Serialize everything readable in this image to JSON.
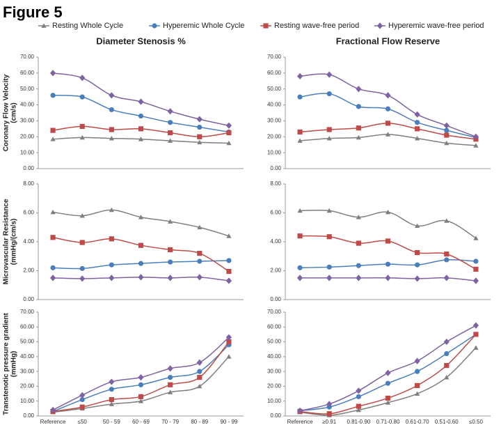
{
  "title": "Figure 5",
  "chart_data": [
    {
      "type": "line",
      "title": "Diameter Stenosis %",
      "ylabel": [
        "Coronary Flow Velocity",
        "(cm/s)"
      ],
      "categories": [
        null,
        null,
        null,
        null,
        null,
        null,
        null
      ],
      "ylim": [
        0,
        70
      ],
      "yticks": [
        {
          "value": 0,
          "label": "0.00"
        },
        {
          "value": 10,
          "label": "10.00"
        },
        {
          "value": 20,
          "label": "20.00"
        },
        {
          "value": 30,
          "label": "30.00"
        },
        {
          "value": 40,
          "label": "40.00"
        },
        {
          "value": 50,
          "label": "50.00"
        },
        {
          "value": 60,
          "label": "60.00"
        },
        {
          "value": 70,
          "label": "70.00"
        }
      ],
      "grid": false,
      "series": [
        {
          "name": "Resting Whole Cycle",
          "color": "#7f7f7f",
          "marker": "triangle",
          "values": [
            18.5,
            19.5,
            19,
            18.5,
            17.5,
            16.5,
            16
          ]
        },
        {
          "name": "Hyperemic Whole Cycle",
          "color": "#4a7ebb",
          "marker": "circle",
          "values": [
            46,
            45,
            37,
            33,
            29,
            26,
            23
          ]
        },
        {
          "name": "Resting wave-free period",
          "color": "#be4b48",
          "marker": "square",
          "values": [
            24,
            26.5,
            24.5,
            25,
            22.5,
            20,
            22.5
          ]
        },
        {
          "name": "Hyperemic wave-free period",
          "color": "#7e62a1",
          "marker": "diamond",
          "values": [
            60,
            57,
            46,
            42,
            36,
            31,
            27
          ]
        }
      ]
    },
    {
      "type": "line",
      "title": "Fractional Flow Reserve",
      "categories": [
        null,
        null,
        null,
        null,
        null,
        null,
        null
      ],
      "ylim": [
        0,
        70
      ],
      "yticks": [
        {
          "value": 0,
          "label": "0.00"
        },
        {
          "value": 10,
          "label": "10.00"
        },
        {
          "value": 20,
          "label": "20.00"
        },
        {
          "value": 30,
          "label": "30.00"
        },
        {
          "value": 40,
          "label": "40.00"
        },
        {
          "value": 50,
          "label": "50.00"
        },
        {
          "value": 60,
          "label": "60.00"
        },
        {
          "value": 70,
          "label": "70.00"
        }
      ],
      "grid": false,
      "series": [
        {
          "color": "#7f7f7f",
          "marker": "triangle",
          "values": [
            17.5,
            19,
            19.5,
            21.5,
            19,
            16,
            14.5
          ]
        },
        {
          "color": "#4a7ebb",
          "marker": "circle",
          "values": [
            45,
            47,
            39,
            37.5,
            29,
            24,
            19.5
          ]
        },
        {
          "color": "#be4b48",
          "marker": "square",
          "values": [
            23,
            24.5,
            25.5,
            28.5,
            25,
            21,
            18.5
          ]
        },
        {
          "color": "#7e62a1",
          "marker": "diamond",
          "values": [
            58,
            59,
            50,
            46,
            34,
            27,
            20
          ]
        }
      ]
    },
    {
      "type": "line",
      "ylabel": [
        "Microvascular Resistance",
        "(mmHg/(cm/s)"
      ],
      "categories": [
        null,
        null,
        null,
        null,
        null,
        null,
        null
      ],
      "ylim": [
        0,
        8
      ],
      "yticks": [
        {
          "value": 0,
          "label": "0.00"
        },
        {
          "value": 2,
          "label": "2.00"
        },
        {
          "value": 4,
          "label": "4.00"
        },
        {
          "value": 6,
          "label": "6.00"
        },
        {
          "value": 8,
          "label": "8.00"
        }
      ],
      "grid": false,
      "series": [
        {
          "color": "#7f7f7f",
          "marker": "triangle",
          "values": [
            6.05,
            5.8,
            6.2,
            5.7,
            5.4,
            5.0,
            4.4
          ]
        },
        {
          "color": "#4a7ebb",
          "marker": "circle",
          "values": [
            2.2,
            2.15,
            2.4,
            2.5,
            2.6,
            2.65,
            2.7
          ]
        },
        {
          "color": "#be4b48",
          "marker": "square",
          "values": [
            4.3,
            3.95,
            4.2,
            3.75,
            3.45,
            3.2,
            1.95
          ]
        },
        {
          "color": "#7e62a1",
          "marker": "diamond",
          "values": [
            1.5,
            1.45,
            1.5,
            1.55,
            1.5,
            1.55,
            1.3
          ]
        }
      ]
    },
    {
      "type": "line",
      "categories": [
        null,
        null,
        null,
        null,
        null,
        null,
        null
      ],
      "ylim": [
        0,
        8
      ],
      "yticks": [
        {
          "value": 0,
          "label": "0.00"
        },
        {
          "value": 2,
          "label": "2.00"
        },
        {
          "value": 4,
          "label": "4.00"
        },
        {
          "value": 6,
          "label": "6.00"
        },
        {
          "value": 8,
          "label": "8.00"
        }
      ],
      "grid": false,
      "series": [
        {
          "color": "#7f7f7f",
          "marker": "triangle",
          "values": [
            6.15,
            6.15,
            5.7,
            6.05,
            5.1,
            5.45,
            4.25
          ]
        },
        {
          "color": "#4a7ebb",
          "marker": "circle",
          "values": [
            2.2,
            2.25,
            2.35,
            2.45,
            2.4,
            2.75,
            2.65
          ]
        },
        {
          "color": "#be4b48",
          "marker": "square",
          "values": [
            4.4,
            4.35,
            3.9,
            4.05,
            3.25,
            3.15,
            2.1
          ]
        },
        {
          "color": "#7e62a1",
          "marker": "diamond",
          "values": [
            1.5,
            1.5,
            1.5,
            1.5,
            1.45,
            1.5,
            1.3
          ]
        }
      ]
    },
    {
      "type": "line",
      "ylabel": [
        "Transtenotic pressure gradient",
        "(mmHg)"
      ],
      "categories": [
        "Reference",
        "≤50",
        "50 - 59",
        "60 - 69",
        "70 - 79",
        "80 - 89",
        "90 - 99"
      ],
      "ylim": [
        0,
        70
      ],
      "yticks": [
        {
          "value": 0,
          "label": "0.00"
        },
        {
          "value": 10,
          "label": "10.00"
        },
        {
          "value": 20,
          "label": "20.00"
        },
        {
          "value": 30,
          "label": "30.00"
        },
        {
          "value": 40,
          "label": "40.00"
        },
        {
          "value": 50,
          "label": "50.00"
        },
        {
          "value": 60,
          "label": "60.00"
        },
        {
          "value": 70,
          "label": "70.00"
        }
      ],
      "grid": false,
      "series": [
        {
          "color": "#7f7f7f",
          "marker": "triangle",
          "values": [
            2.5,
            5,
            8,
            10,
            16,
            20,
            40
          ]
        },
        {
          "color": "#4a7ebb",
          "marker": "circle",
          "values": [
            3,
            11,
            18,
            21,
            26,
            30,
            48
          ]
        },
        {
          "color": "#be4b48",
          "marker": "square",
          "values": [
            3,
            6,
            11,
            13,
            21,
            26,
            50
          ]
        },
        {
          "color": "#7e62a1",
          "marker": "diamond",
          "values": [
            4,
            14,
            23,
            26,
            32,
            36,
            53
          ]
        }
      ]
    },
    {
      "type": "line",
      "categories": [
        "Reference",
        "≥0.91",
        "0.81-0.90",
        "0.71-0.80",
        "0.61-0.70",
        "0.51-0.60",
        "≤0.50"
      ],
      "ylim": [
        0,
        70
      ],
      "yticks": [
        {
          "value": 0,
          "label": "0.00"
        },
        {
          "value": 10,
          "label": "10.00"
        },
        {
          "value": 20,
          "label": "20.00"
        },
        {
          "value": 30,
          "label": "30.00"
        },
        {
          "value": 40,
          "label": "40.00"
        },
        {
          "value": 50,
          "label": "50.00"
        },
        {
          "value": 60,
          "label": "60.00"
        },
        {
          "value": 70,
          "label": "70.00"
        }
      ],
      "grid": false,
      "series": [
        {
          "color": "#7f7f7f",
          "marker": "triangle",
          "values": [
            2.5,
            0.5,
            4,
            9,
            15,
            26,
            46
          ]
        },
        {
          "color": "#4a7ebb",
          "marker": "circle",
          "values": [
            3.5,
            6,
            13,
            22,
            30,
            42,
            55
          ]
        },
        {
          "color": "#be4b48",
          "marker": "square",
          "values": [
            3,
            1.5,
            6.5,
            12,
            20.5,
            34,
            55
          ]
        },
        {
          "color": "#7e62a1",
          "marker": "diamond",
          "values": [
            3.5,
            8,
            17,
            29,
            37,
            50,
            61
          ]
        }
      ]
    }
  ]
}
